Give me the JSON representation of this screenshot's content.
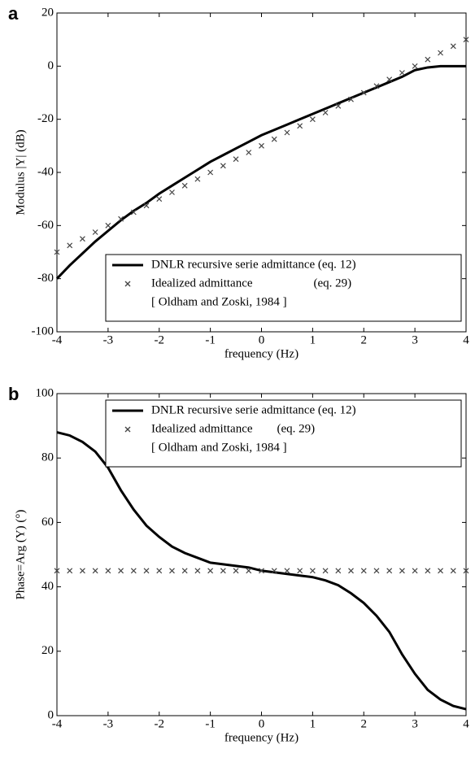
{
  "chart_data": [
    {
      "type": "line",
      "label": "a",
      "xlabel": "frequency (Hz)",
      "ylabel": "Modulus  |Y|  (dB)",
      "x": [
        -4,
        -3.75,
        -3.5,
        -3.25,
        -3,
        -2.75,
        -2.5,
        -2.25,
        -2,
        -1.75,
        -1.5,
        -1.25,
        -1,
        -0.75,
        -0.5,
        -0.25,
        0,
        0.25,
        0.5,
        0.75,
        1,
        1.25,
        1.5,
        1.75,
        2,
        2.25,
        2.5,
        2.75,
        3,
        3.25,
        3.5,
        3.75,
        4
      ],
      "series": [
        {
          "name": "DNLR recursive serie admittance (eq. 12)",
          "color": "#000000",
          "style": "line",
          "values": [
            -80,
            -75,
            -70.5,
            -66,
            -62,
            -58,
            -54.5,
            -51.5,
            -48,
            -45,
            -42,
            -39,
            -36,
            -33.5,
            -31,
            -28.5,
            -26,
            -24,
            -22,
            -20,
            -18,
            -16,
            -14,
            -12,
            -10,
            -8,
            -6,
            -4,
            -1.5,
            -0.5,
            0,
            0,
            0
          ]
        },
        {
          "name": "Idealized admittance                    (eq. 29)",
          "color": "#444444",
          "style": "marker",
          "values": [
            -70,
            -67.5,
            -65,
            -62.5,
            -60,
            -57.5,
            -55,
            -52.5,
            -50,
            -47.5,
            -45,
            -42.5,
            -40,
            -37.5,
            -35,
            -32.5,
            -30,
            -27.5,
            -25,
            -22.5,
            -20,
            -17.5,
            -15,
            -12.5,
            -10,
            -7.5,
            -5,
            -2.5,
            0,
            2.5,
            5,
            7.5,
            10
          ]
        }
      ],
      "legend_note": "[ Oldham and Zoski, 1984 ]",
      "legend": "lower right",
      "xlim": [
        -4,
        4
      ],
      "xticks": [
        -4,
        -3,
        -2,
        -1,
        0,
        1,
        2,
        3,
        4
      ],
      "ylim": [
        -100,
        20
      ],
      "yticks": [
        -100,
        -80,
        -60,
        -40,
        -20,
        0,
        20
      ]
    },
    {
      "type": "line",
      "label": "b",
      "xlabel": "frequency (Hz)",
      "ylabel": "Phase=Arg (Y)   (°)",
      "x": [
        -4,
        -3.75,
        -3.5,
        -3.25,
        -3,
        -2.75,
        -2.5,
        -2.25,
        -2,
        -1.75,
        -1.5,
        -1.25,
        -1,
        -0.75,
        -0.5,
        -0.25,
        0,
        0.25,
        0.5,
        0.75,
        1,
        1.25,
        1.5,
        1.75,
        2,
        2.25,
        2.5,
        2.75,
        3,
        3.25,
        3.5,
        3.75,
        4
      ],
      "series": [
        {
          "name": "DNLR recursive serie admittance (eq. 12)",
          "color": "#000000",
          "style": "line",
          "values": [
            88,
            87,
            85,
            82,
            77,
            70,
            64,
            59,
            55.5,
            52.5,
            50.5,
            49,
            47.5,
            47,
            46.5,
            46,
            45,
            44.5,
            44,
            43.5,
            43,
            42,
            40.5,
            38,
            35,
            31,
            26,
            19,
            13,
            8,
            5,
            3,
            2
          ]
        },
        {
          "name": "Idealized admittance        (eq. 29)",
          "color": "#444444",
          "style": "marker",
          "values": [
            45,
            45,
            45,
            45,
            45,
            45,
            45,
            45,
            45,
            45,
            45,
            45,
            45,
            45,
            45,
            45,
            45,
            45,
            45,
            45,
            45,
            45,
            45,
            45,
            45,
            45,
            45,
            45,
            45,
            45,
            45,
            45,
            45
          ]
        }
      ],
      "legend_note": "[ Oldham and Zoski, 1984 ]",
      "legend": "upper right",
      "xlim": [
        -4,
        4
      ],
      "xticks": [
        -4,
        -3,
        -2,
        -1,
        0,
        1,
        2,
        3,
        4
      ],
      "ylim": [
        0,
        100
      ],
      "yticks": [
        0,
        20,
        40,
        60,
        80,
        100
      ]
    }
  ]
}
